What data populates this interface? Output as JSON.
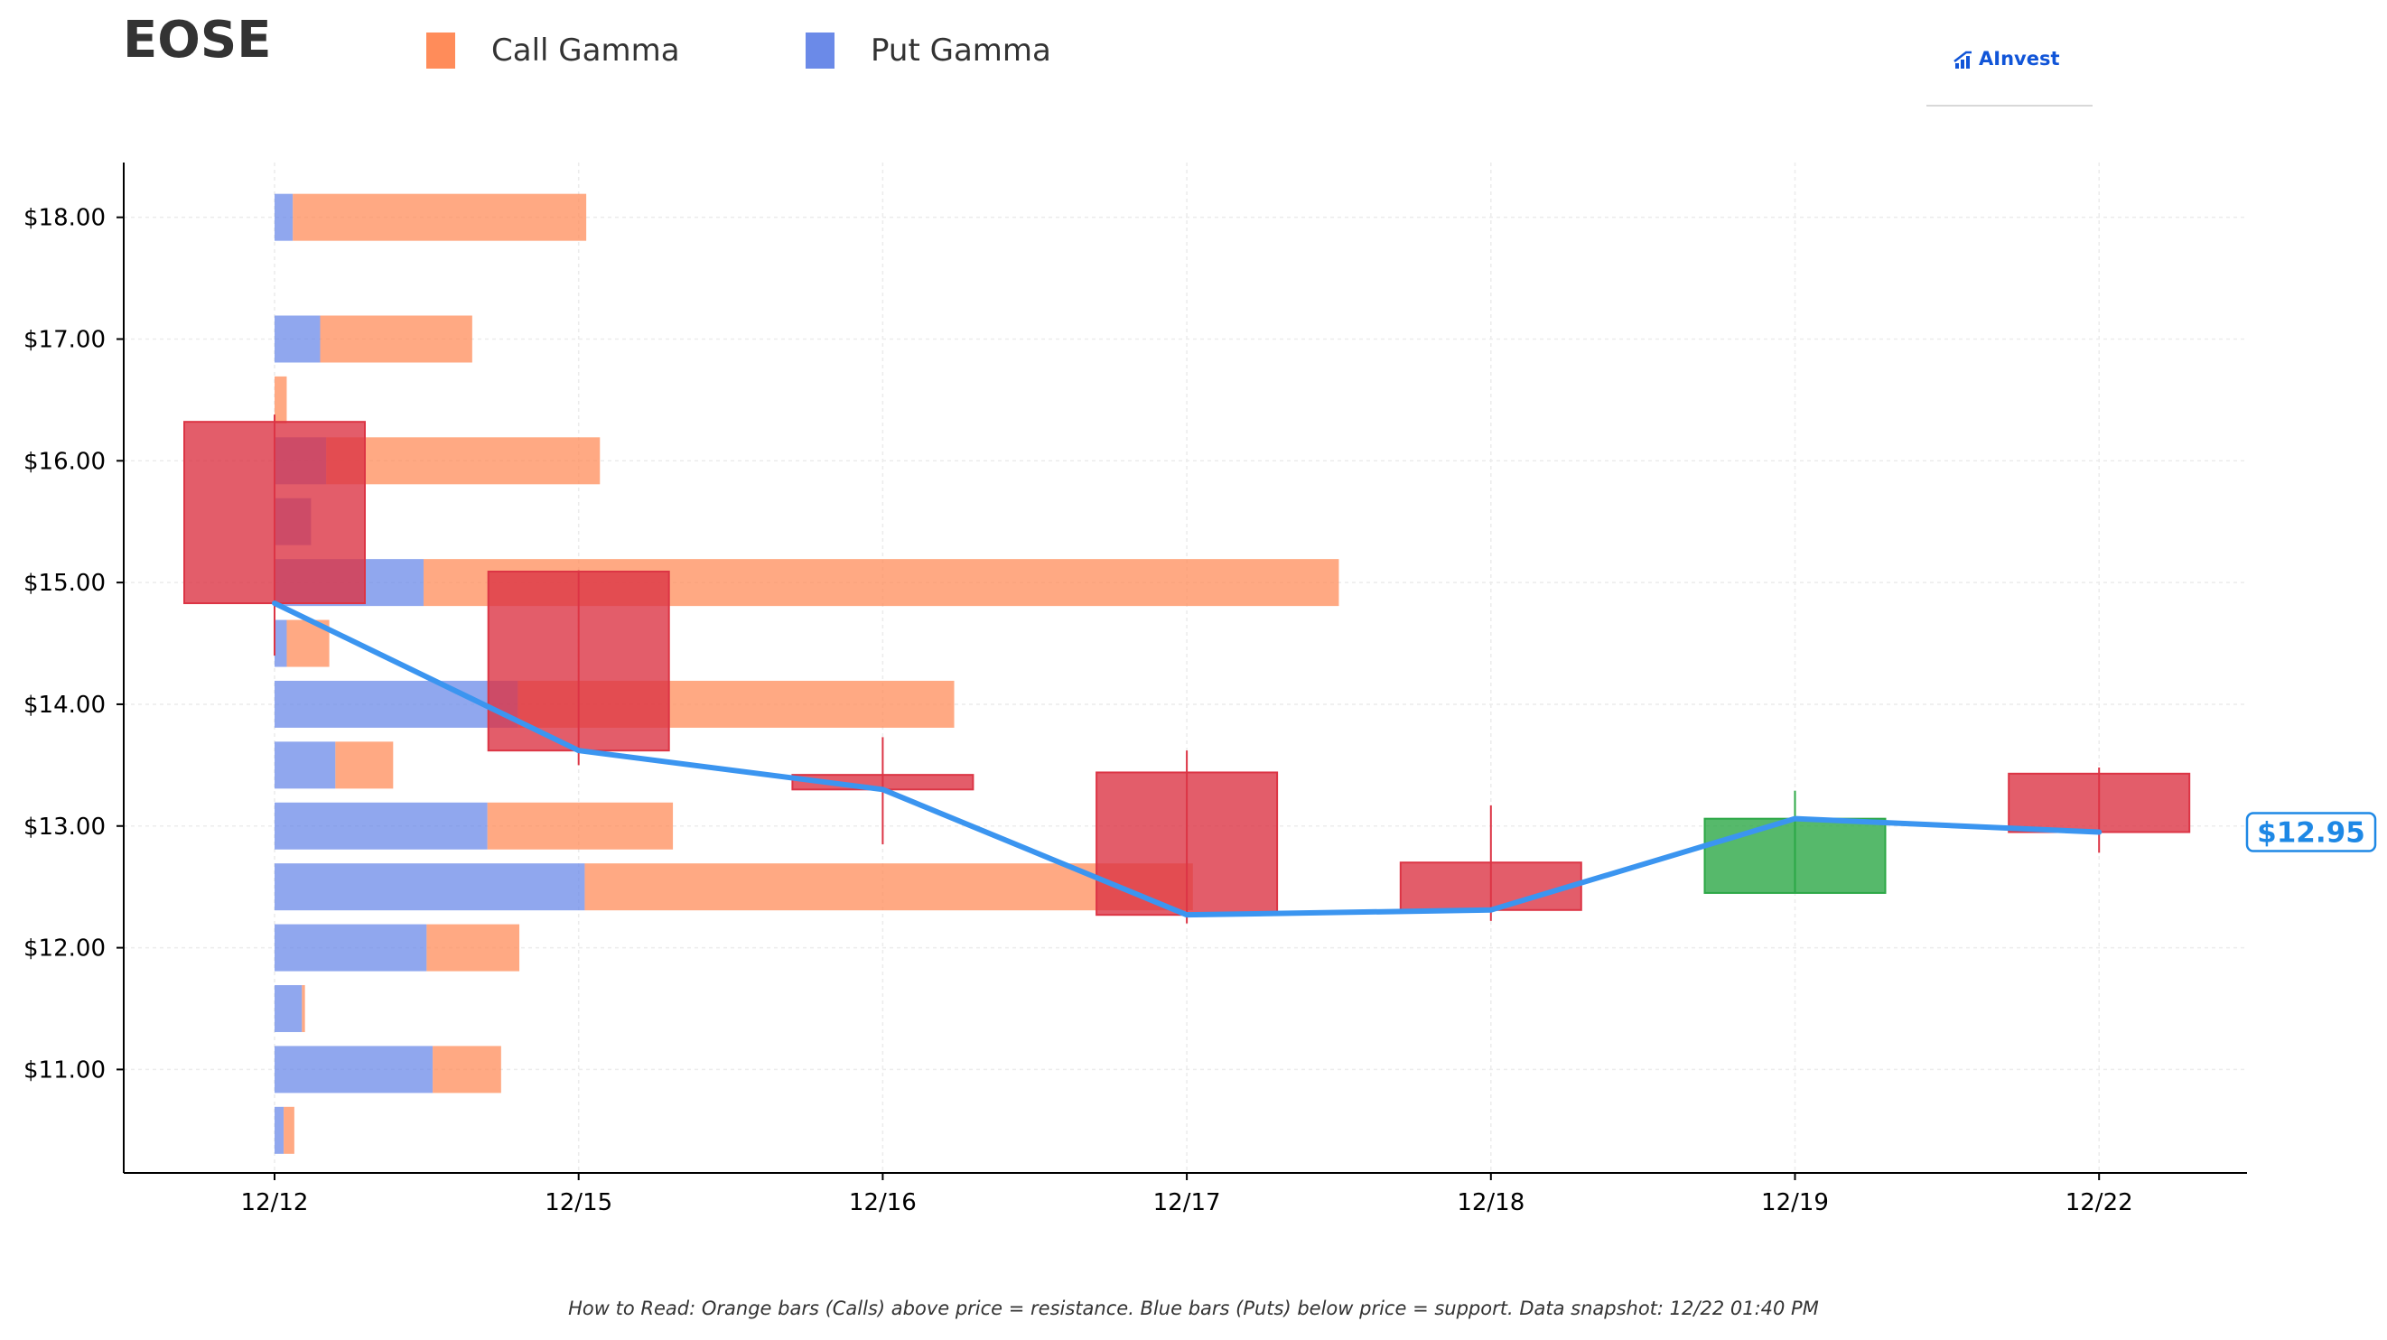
{
  "title": "EOSE",
  "legend": [
    {
      "label": "Call Gamma",
      "color": "#ff8c5a"
    },
    {
      "label": "Put Gamma",
      "color": "#6b8ae8"
    }
  ],
  "logo": {
    "text": "AInvest"
  },
  "footnote": "How to Read: Orange bars (Calls) above price = resistance. Blue bars (Puts) below price = support. Data snapshot: 12/22 01:40 PM",
  "chart_data": {
    "type": "candlestick_with_gamma_bars",
    "title": "EOSE",
    "x_categories": [
      "12/12",
      "12/15",
      "12/16",
      "12/17",
      "12/18",
      "12/19",
      "12/22"
    ],
    "y_tick_labels": [
      "$11.00",
      "$12.00",
      "$13.00",
      "$14.00",
      "$15.00",
      "$16.00",
      "$17.00",
      "$18.00"
    ],
    "y_ticks": [
      11,
      12,
      13,
      14,
      15,
      16,
      17,
      18
    ],
    "ylim": [
      10.15,
      18.45
    ],
    "grid": true,
    "legend_position": "top",
    "colors": {
      "call": "#ff8c5a",
      "put": "#6b8ae8",
      "up": "#2ca846",
      "down": "#dc3545",
      "line": "#3b95f0",
      "last_price": "#1e88e5"
    },
    "gamma_units": "days",
    "gamma_bars": [
      {
        "strike": 10.5,
        "put": 0.03,
        "call": 0.035
      },
      {
        "strike": 11.0,
        "put": 0.52,
        "call": 0.225
      },
      {
        "strike": 11.5,
        "put": 0.09,
        "call": 0.01
      },
      {
        "strike": 12.0,
        "put": 0.5,
        "call": 0.305
      },
      {
        "strike": 12.5,
        "put": 1.02,
        "call": 2.0
      },
      {
        "strike": 13.0,
        "put": 0.7,
        "call": 0.61
      },
      {
        "strike": 13.5,
        "put": 0.2,
        "call": 0.19
      },
      {
        "strike": 14.0,
        "put": 0.8,
        "call": 1.435
      },
      {
        "strike": 14.5,
        "put": 0.04,
        "call": 0.14
      },
      {
        "strike": 15.0,
        "put": 0.49,
        "call": 3.01
      },
      {
        "strike": 15.5,
        "put": 0.12,
        "call": 0.0
      },
      {
        "strike": 16.0,
        "put": 0.17,
        "call": 0.9
      },
      {
        "strike": 16.5,
        "put": 0.0,
        "call": 0.04
      },
      {
        "strike": 17.0,
        "put": 0.15,
        "call": 0.5
      },
      {
        "strike": 18.0,
        "put": 0.06,
        "call": 0.965
      }
    ],
    "candles": [
      {
        "date": "12/12",
        "open": 16.32,
        "high": 16.38,
        "low": 14.4,
        "close": 14.83
      },
      {
        "date": "12/15",
        "open": 15.09,
        "high": 15.1,
        "low": 13.5,
        "close": 13.62
      },
      {
        "date": "12/16",
        "open": 13.42,
        "high": 13.73,
        "low": 12.85,
        "close": 13.3
      },
      {
        "date": "12/17",
        "open": 13.44,
        "high": 13.62,
        "low": 12.2,
        "close": 12.27
      },
      {
        "date": "12/18",
        "open": 12.7,
        "high": 13.17,
        "low": 12.22,
        "close": 12.31
      },
      {
        "date": "12/19",
        "open": 12.45,
        "high": 13.29,
        "low": 12.45,
        "close": 13.06
      },
      {
        "date": "12/22",
        "open": 13.43,
        "high": 13.48,
        "low": 12.78,
        "close": 12.95
      }
    ],
    "close_line": [
      14.83,
      13.62,
      13.3,
      12.27,
      12.31,
      13.06,
      12.95
    ],
    "last_price_label": "$12.95"
  }
}
